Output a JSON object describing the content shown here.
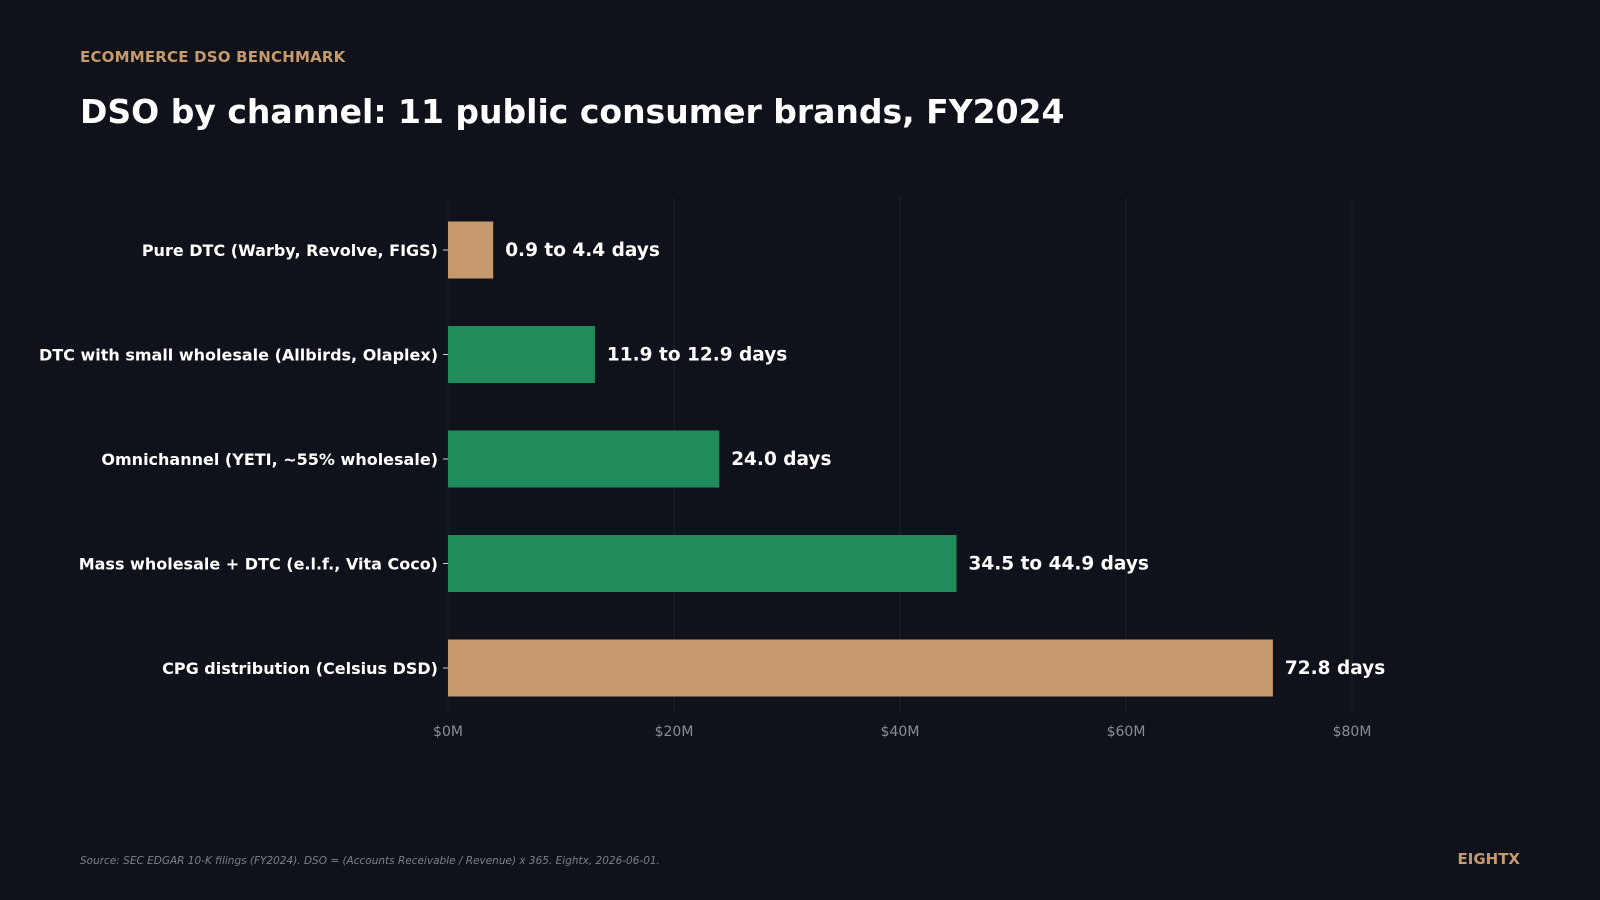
{
  "header": {
    "eyebrow": "ECOMMERCE DSO BENCHMARK",
    "title": "DSO by channel: 11 public consumer brands, FY2024"
  },
  "chart_data": {
    "type": "bar",
    "orientation": "horizontal",
    "categories": [
      "Pure DTC (Warby, Revolve, FIGS)",
      "DTC with small wholesale (Allbirds, Olaplex)",
      "Omnichannel (YETI, ~55% wholesale)",
      "Mass wholesale + DTC (e.l.f., Vita Coco)",
      "CPG distribution (Celsius DSD)"
    ],
    "values": [
      4.0,
      13.0,
      24.0,
      45.0,
      73.0
    ],
    "value_labels": [
      "0.9 to 4.4 days",
      "11.9 to 12.9 days",
      "24.0 days",
      "34.5 to 44.9 days",
      "72.8 days"
    ],
    "bar_colors": [
      "#c69a6d",
      "#218c5b",
      "#218c5b",
      "#218c5b",
      "#c69a6d"
    ],
    "x_ticks": [
      0,
      20,
      40,
      60,
      80
    ],
    "x_tick_labels": [
      "$0M",
      "$20M",
      "$40M",
      "$60M",
      "$80M"
    ],
    "xlim": [
      0,
      95
    ],
    "grid": "vertical",
    "legend": "none",
    "title": "DSO by channel: 11 public consumer brands, FY2024",
    "xlabel": "",
    "ylabel": ""
  },
  "colors": {
    "background": "#0f121a",
    "accent": "#c69a6d",
    "green": "#218c5b",
    "grid": "#1e222b",
    "tick_text": "#8a8d96"
  },
  "footer": {
    "source": "Source: SEC EDGAR 10-K filings (FY2024). DSO = (Accounts Receivable / Revenue) x 365. Eightx, 2026-06-01.",
    "brand": "EIGHTX"
  }
}
